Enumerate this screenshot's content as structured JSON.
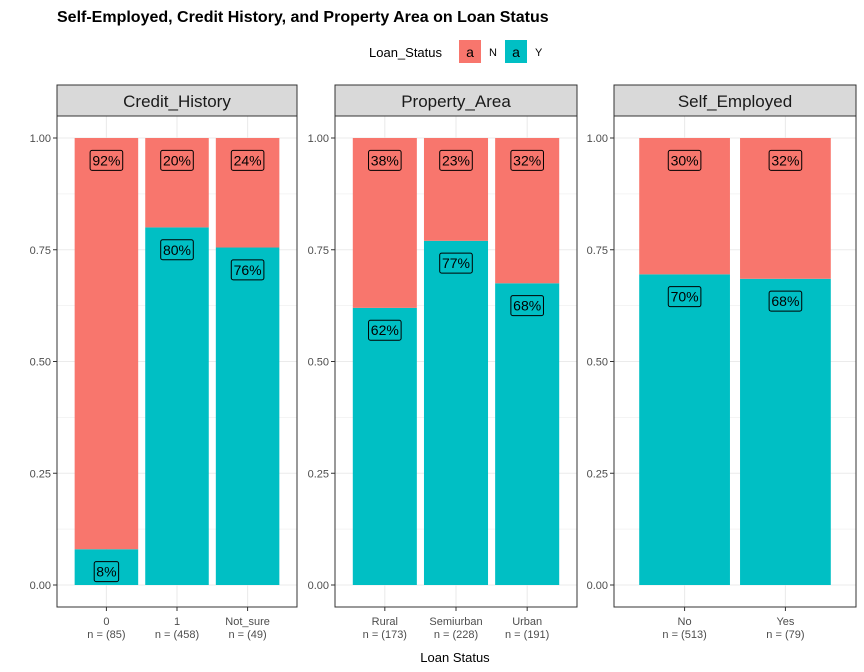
{
  "chart_data": {
    "type": "bar",
    "stacked": true,
    "title": "Self-Employed, Credit History, and Property Area on Loan Status",
    "xlabel": "Loan Status",
    "ylabel": "",
    "ylim": [
      0,
      1
    ],
    "y_ticks": [
      "0.00",
      "0.25",
      "0.50",
      "0.75",
      "1.00"
    ],
    "grid": true,
    "legend": {
      "title": "Loan_Status",
      "placement": "top",
      "key_glyph": "a",
      "entries": [
        {
          "name": "N",
          "color": "#F8766D"
        },
        {
          "name": "Y",
          "color": "#00BFC4"
        }
      ]
    },
    "panels": [
      {
        "strip": "Credit_History",
        "categories": [
          {
            "label": "0",
            "n": "n = (85)",
            "Y": 0.08,
            "N": 0.92,
            "label_Y": "8%",
            "label_N": "92%"
          },
          {
            "label": "1",
            "n": "n = (458)",
            "Y": 0.8,
            "N": 0.2,
            "label_Y": "80%",
            "label_N": "20%"
          },
          {
            "label": "Not_sure",
            "n": "n = (49)",
            "Y": 0.755,
            "N": 0.245,
            "label_Y": "76%",
            "label_N": "24%"
          }
        ]
      },
      {
        "strip": "Property_Area",
        "categories": [
          {
            "label": "Rural",
            "n": "n = (173)",
            "Y": 0.62,
            "N": 0.38,
            "label_Y": "62%",
            "label_N": "38%"
          },
          {
            "label": "Semiurban",
            "n": "n = (228)",
            "Y": 0.77,
            "N": 0.23,
            "label_Y": "77%",
            "label_N": "23%"
          },
          {
            "label": "Urban",
            "n": "n = (191)",
            "Y": 0.675,
            "N": 0.325,
            "label_Y": "68%",
            "label_N": "32%"
          }
        ]
      },
      {
        "strip": "Self_Employed",
        "categories": [
          {
            "label": "No",
            "n": "n = (513)",
            "Y": 0.695,
            "N": 0.305,
            "label_Y": "70%",
            "label_N": "30%"
          },
          {
            "label": "Yes",
            "n": "n = (79)",
            "Y": 0.685,
            "N": 0.315,
            "label_Y": "68%",
            "label_N": "32%"
          }
        ]
      }
    ]
  }
}
